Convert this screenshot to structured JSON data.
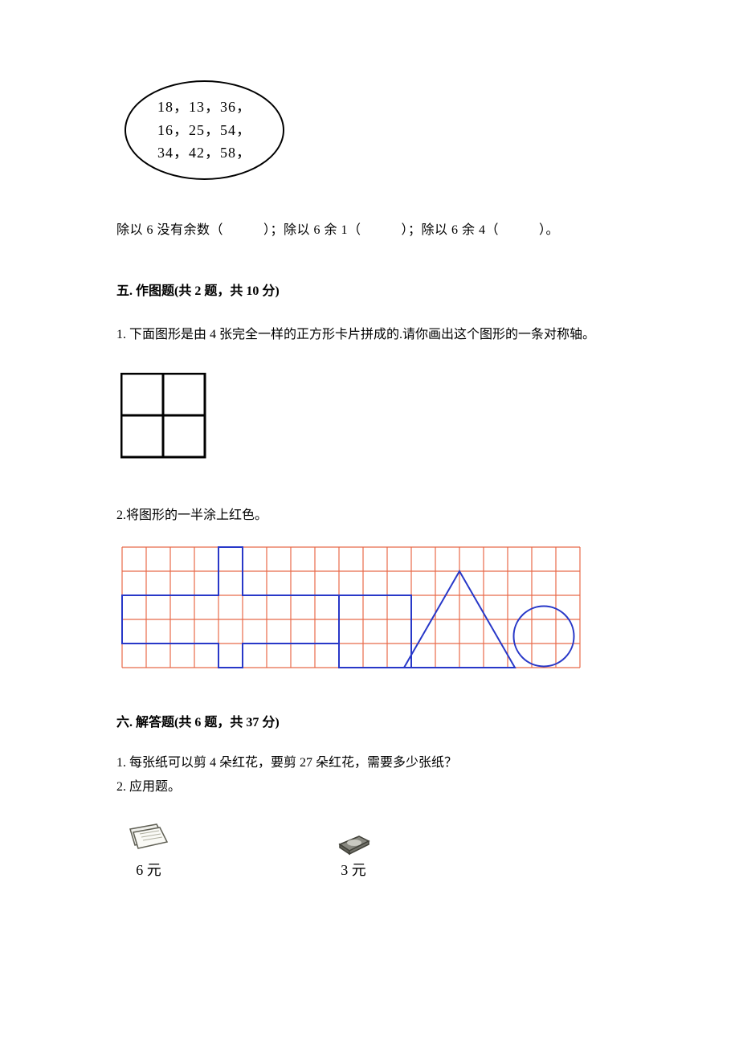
{
  "oval": {
    "row1": "18，13，36，",
    "row2": "16，25，54，",
    "row3": "34，42，58，",
    "border_color": "#000000",
    "text_color": "#000000",
    "fontsize": 18
  },
  "fill_question": {
    "part1": "除以 6 没有余数（",
    "part2": "）；除以 6 余 1（",
    "part3": "）；除以 6 余 4（",
    "part4": "）。"
  },
  "section5": {
    "header": "五. 作图题(共 2 题，共 10 分)",
    "q1": "1. 下面图形是由 4 张完全一样的正方形卡片拼成的.请你画出这个图形的一条对称轴。",
    "q2": "2.将图形的一半涂上红色。"
  },
  "four_square": {
    "size": 52,
    "stroke": "#000000",
    "stroke_width": 2
  },
  "grid": {
    "cell": 30,
    "cols": 19,
    "rows": 5,
    "grid_color": "#e86a4a",
    "shape_color": "#2838c8",
    "stroke_width": 2
  },
  "section6": {
    "header": "六. 解答题(共 6 题，共 37 分)",
    "q1": "1. 每张纸可以剪 4 朵红花，要剪 27 朵红花，需要多少张纸？",
    "q2": "2. 应用题。"
  },
  "items": {
    "item1_price": "6 元",
    "item2_price": "3 元"
  },
  "colors": {
    "text": "#000000",
    "background": "#ffffff"
  }
}
